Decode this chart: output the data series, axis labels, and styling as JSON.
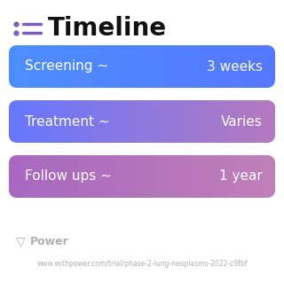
{
  "title": "Timeline",
  "title_fontsize": 20,
  "title_color": "#111111",
  "title_fontweight": "bold",
  "background_color": "#ffffff",
  "icon_color": "#7c5cbf",
  "icon_line_color": "#7c5cbf",
  "rows": [
    {
      "label": "Screening ~",
      "value": "3 weeks",
      "gradient_left": "#4d8fff",
      "gradient_right": "#5577ff",
      "text_color": "#ffffff"
    },
    {
      "label": "Treatment ~",
      "value": "Varies",
      "gradient_left": "#6677ff",
      "gradient_right": "#b57abf",
      "text_color": "#ffffff"
    },
    {
      "label": "Follow ups ~",
      "value": "1 year",
      "gradient_left": "#a868c0",
      "gradient_right": "#c080b8",
      "text_color": "#ffffff"
    }
  ],
  "footer_logo_text": "Power",
  "footer_url": "www.withpower.com/trial/phase-2-lung-neoplasms-2022-c9fbf",
  "footer_color": "#b0b0b0",
  "footer_fontsize": 5.5,
  "footer_logo_fontsize": 9
}
